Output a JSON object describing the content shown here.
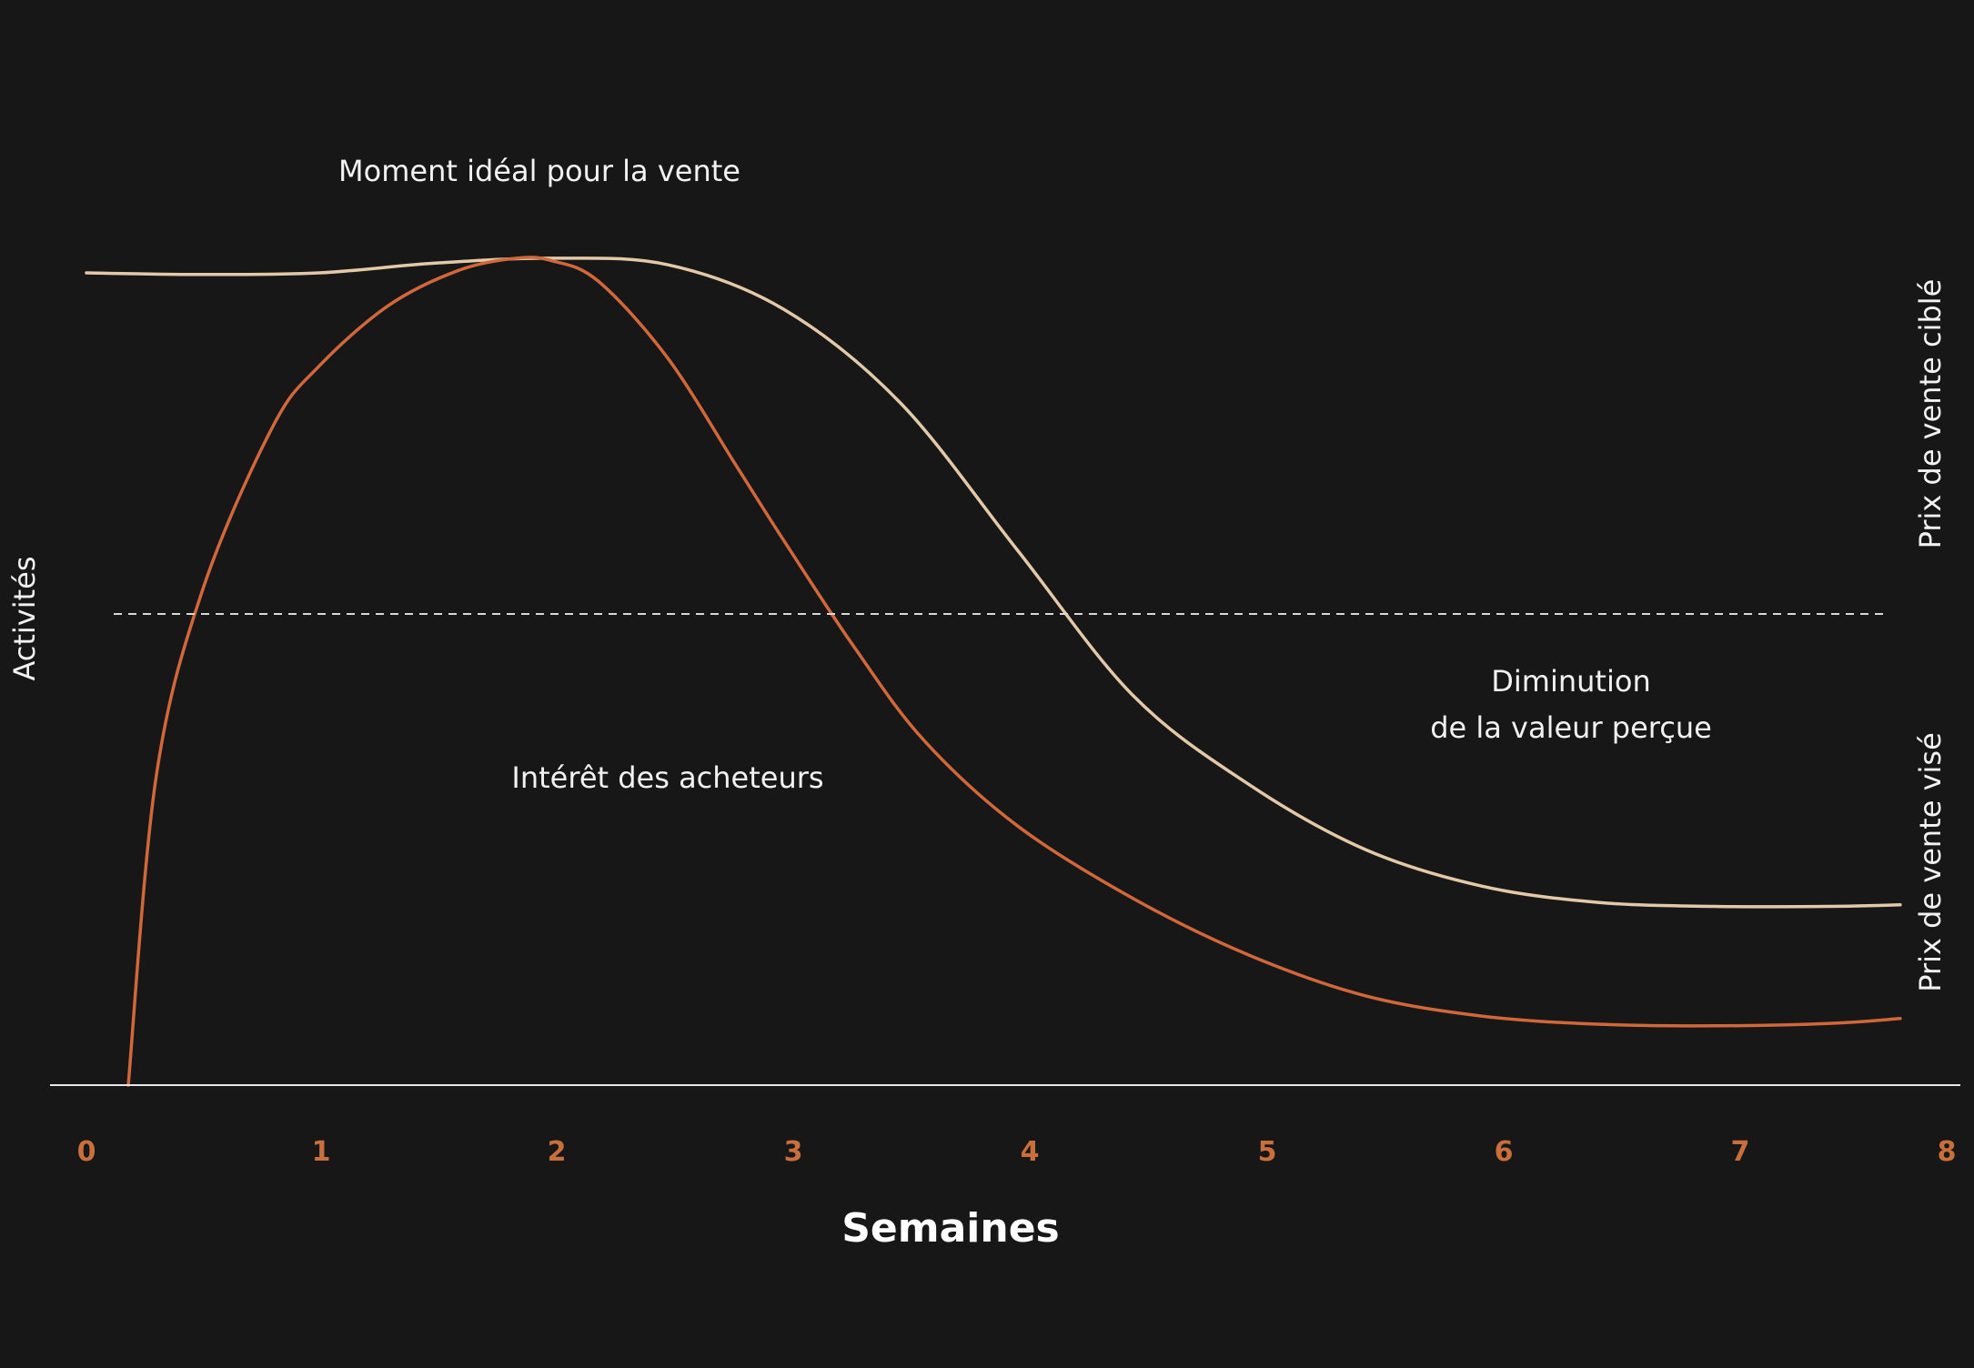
{
  "chart_data": {
    "type": "line",
    "xlabel": "Semaines",
    "ylabel": "Activités",
    "xlim": [
      0,
      8
    ],
    "ylim": [
      0,
      100
    ],
    "x_ticks": [
      "0",
      "1",
      "2",
      "3",
      "4",
      "5",
      "6",
      "7",
      "8"
    ],
    "grid": false,
    "right_labels": {
      "upper": "Prix de vente ciblé",
      "lower": "Prix de vente visé"
    },
    "reference_line": {
      "y": 58,
      "style": "dashed"
    },
    "annotations": {
      "peak": "Moment idéal pour la vente",
      "interest": "Intérêt des acheteurs",
      "decline_line1": "Diminution",
      "decline_line2": "de la valeur perçue"
    },
    "series": [
      {
        "key": "value",
        "color": "#e3c9a8",
        "x": [
          0.0,
          0.5,
          1.0,
          1.5,
          2.0,
          2.5,
          3.0,
          3.5,
          4.0,
          4.5,
          5.0,
          5.5,
          6.0,
          6.5,
          7.0,
          7.5,
          7.8
        ],
        "y": [
          100,
          99.8,
          100,
          101.2,
          101.8,
          101,
          95.5,
          84,
          66,
          48,
          37,
          29,
          24.5,
          22.5,
          22,
          22,
          22.2
        ]
      },
      {
        "key": "interest",
        "color": "#d1673a",
        "x": [
          0.18,
          0.3,
          0.5,
          0.8,
          1.0,
          1.3,
          1.6,
          1.85,
          2.0,
          2.2,
          2.5,
          2.8,
          3.0,
          3.3,
          3.6,
          4.0,
          4.5,
          5.0,
          5.5,
          6.0,
          6.5,
          7.0,
          7.5,
          7.8
        ],
        "y": [
          0,
          38,
          61,
          81,
          88.5,
          96,
          100.3,
          101.8,
          101.5,
          99,
          89.5,
          76,
          67,
          54,
          42.5,
          32,
          23,
          16,
          11,
          8.5,
          7.5,
          7.3,
          7.6,
          8.2
        ]
      }
    ]
  }
}
